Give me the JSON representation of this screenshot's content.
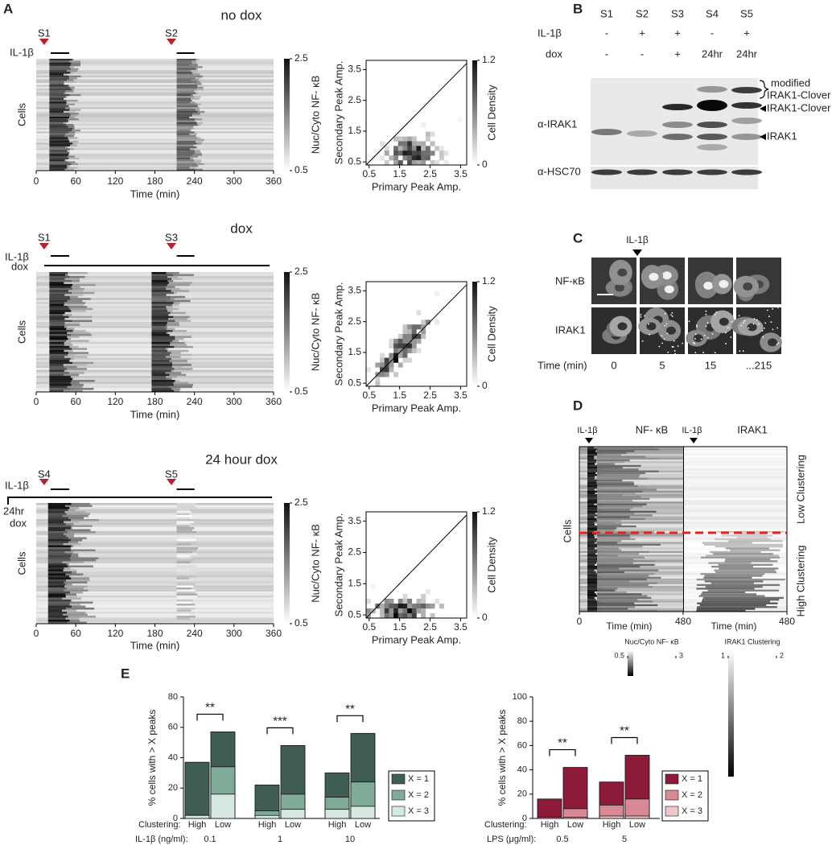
{
  "panel_a": {
    "letter": "A",
    "heatmaps": [
      {
        "title": "no dox",
        "stimuli": [
          "S1",
          "S2"
        ],
        "treatments": [
          "IL-1β"
        ],
        "y_label": "Cells",
        "x_label": "Time (min)",
        "xlim": [
          0,
          360
        ],
        "xticks": [
          0,
          60,
          120,
          180,
          240,
          300,
          360
        ],
        "colorbar": {
          "label": "Nuc/Cyto NF- κB",
          "lim": [
            0.5,
            2.5
          ],
          "ticks": [
            2.5,
            0.5
          ]
        }
      },
      {
        "title": "dox",
        "stimuli": [
          "S1",
          "S3"
        ],
        "treatments": [
          "IL-1β",
          "dox"
        ],
        "y_label": "Cells",
        "x_label": "Time (min)",
        "xlim": [
          0,
          360
        ],
        "xticks": [
          0,
          60,
          120,
          180,
          240,
          300,
          360
        ],
        "colorbar": {
          "label": "Nuc/Cyto NF- κB",
          "lim": [
            0.5,
            2.5
          ],
          "ticks": [
            2.5,
            0.5
          ]
        }
      },
      {
        "title": "24 hour dox",
        "stimuli": [
          "S4",
          "S5"
        ],
        "treatments": [
          "IL-1β",
          "24hr",
          "dox"
        ],
        "y_label": "Cells",
        "x_label": "Time (min)",
        "xlim": [
          0,
          360
        ],
        "xticks": [
          0,
          60,
          120,
          180,
          240,
          300,
          360
        ],
        "colorbar": {
          "label": "Nuc/Cyto NF- κB",
          "lim": [
            0.5,
            2.5
          ],
          "ticks": [
            2.5,
            0.5
          ]
        }
      }
    ],
    "scatters": [
      {
        "x_label": "Primary Peak Amp.",
        "y_label": "Secondary Peak  Amp.",
        "xlim": [
          0.4,
          3.7
        ],
        "ylim": [
          0.4,
          3.8
        ],
        "xticks": [
          0.5,
          1.5,
          2.5,
          3.5
        ],
        "yticks": [
          0.5,
          1.5,
          2.5,
          3.5
        ],
        "colorbar": {
          "label": "Cell Density",
          "lim": [
            0,
            1.2
          ],
          "ticks": [
            1.2,
            0
          ]
        }
      },
      {
        "x_label": "Primary Peak Amp.",
        "y_label": "Secondary Peak  Amp.",
        "xlim": [
          0.4,
          3.7
        ],
        "ylim": [
          0.4,
          3.8
        ],
        "xticks": [
          0.5,
          1.5,
          2.5,
          3.5
        ],
        "yticks": [
          0.5,
          1.5,
          2.5,
          3.5
        ],
        "colorbar": {
          "label": "Cell Density",
          "lim": [
            0,
            1.2
          ],
          "ticks": [
            1.2,
            0
          ]
        }
      },
      {
        "x_label": "Primary Peak Amp.",
        "y_label": "Secondary Peak  Amp.",
        "xlim": [
          0.4,
          3.7
        ],
        "ylim": [
          0.4,
          3.8
        ],
        "xticks": [
          0.5,
          1.5,
          2.5,
          3.5
        ],
        "yticks": [
          0.5,
          1.5,
          2.5,
          3.5
        ],
        "colorbar": {
          "label": "Cell Density",
          "lim": [
            0,
            1.2
          ],
          "ticks": [
            1.2,
            0
          ]
        }
      }
    ]
  },
  "panel_b": {
    "letter": "B",
    "lanes": [
      "S1",
      "S2",
      "S3",
      "S4",
      "S5"
    ],
    "rows": [
      {
        "label": "IL-1β",
        "values": [
          "-",
          "+",
          "+",
          "-",
          "+"
        ]
      },
      {
        "label": "dox",
        "values": [
          "-",
          "-",
          "+",
          "24hr",
          "24hr"
        ]
      }
    ],
    "antibodies": [
      "α-IRAK1",
      "α-HSC70"
    ],
    "bands": {
      "modified": [
        "modified",
        "IRAK1-Clover"
      ],
      "clover": "IRAK1-Clover",
      "irak1": "IRAK1"
    }
  },
  "panel_c": {
    "letter": "C",
    "stimulus": "IL-1β",
    "rows": [
      "NF-κB",
      "IRAK1"
    ],
    "time_label": "Time (min)",
    "times": [
      "0",
      "5",
      "15",
      "...215"
    ]
  },
  "panel_d": {
    "letter": "D",
    "y_label": "Cells",
    "groups": [
      "Low Clustering",
      "High Clustering"
    ],
    "heatmaps": [
      {
        "stimulus": "IL-1β",
        "title": "NF- κB",
        "x_label": "Time (min)",
        "xlim": [
          0,
          480
        ],
        "xticks": [
          0,
          480
        ]
      },
      {
        "stimulus": "IL-1β",
        "title": "IRAK1",
        "x_label": "Time (min)",
        "xlim": [
          0,
          480
        ],
        "xticks": [
          480
        ]
      }
    ],
    "colorbars": [
      {
        "label": "Nuc/Cyto NF- κB",
        "lim": [
          0.5,
          3
        ],
        "ticks": [
          0.5,
          3
        ]
      },
      {
        "label": "IRAK1 Clustering",
        "lim": [
          1,
          2
        ],
        "ticks": [
          1,
          2
        ]
      }
    ]
  },
  "panel_e": {
    "letter": "E"
  },
  "chart_data": [
    {
      "type": "bar",
      "y_label": "% cells with > X peaks",
      "ylim": [
        0,
        80
      ],
      "yticks": [
        0,
        20,
        40,
        60,
        80
      ],
      "categories": [
        "High",
        "Low",
        "High",
        "Low",
        "High",
        "Low"
      ],
      "group_label": "Clustering:",
      "dose_label": "IL-1β (ng/ml):",
      "doses": [
        0.1,
        1,
        10
      ],
      "significance": [
        "**",
        "***",
        "**"
      ],
      "series": [
        {
          "name": "X = 1",
          "color": "#3f5d53",
          "values": [
            37,
            57,
            22,
            48,
            30,
            56
          ]
        },
        {
          "name": "X = 2",
          "color": "#7fab98",
          "values": [
            2,
            34,
            5,
            16,
            14,
            24
          ]
        },
        {
          "name": "X = 3",
          "color": "#d7e8e0",
          "values": [
            2,
            16,
            2,
            6,
            6,
            8
          ]
        }
      ]
    },
    {
      "type": "bar",
      "y_label": "% cells with > X peaks",
      "ylim": [
        0,
        100
      ],
      "yticks": [
        0,
        20,
        40,
        60,
        80,
        100
      ],
      "categories": [
        "High",
        "Low",
        "High",
        "Low"
      ],
      "group_label": "Clustering:",
      "dose_label": "LPS (μg/ml):",
      "doses": [
        0.5,
        5
      ],
      "significance": [
        "**",
        "**"
      ],
      "series": [
        {
          "name": "X = 1",
          "color": "#8e1a3a",
          "values": [
            16,
            42,
            30,
            52
          ]
        },
        {
          "name": "X = 2",
          "color": "#d88a94",
          "values": [
            1,
            8,
            11,
            16
          ]
        },
        {
          "name": "X = 3",
          "color": "#edc7ca",
          "values": [
            0,
            1,
            2,
            2
          ]
        }
      ]
    }
  ]
}
